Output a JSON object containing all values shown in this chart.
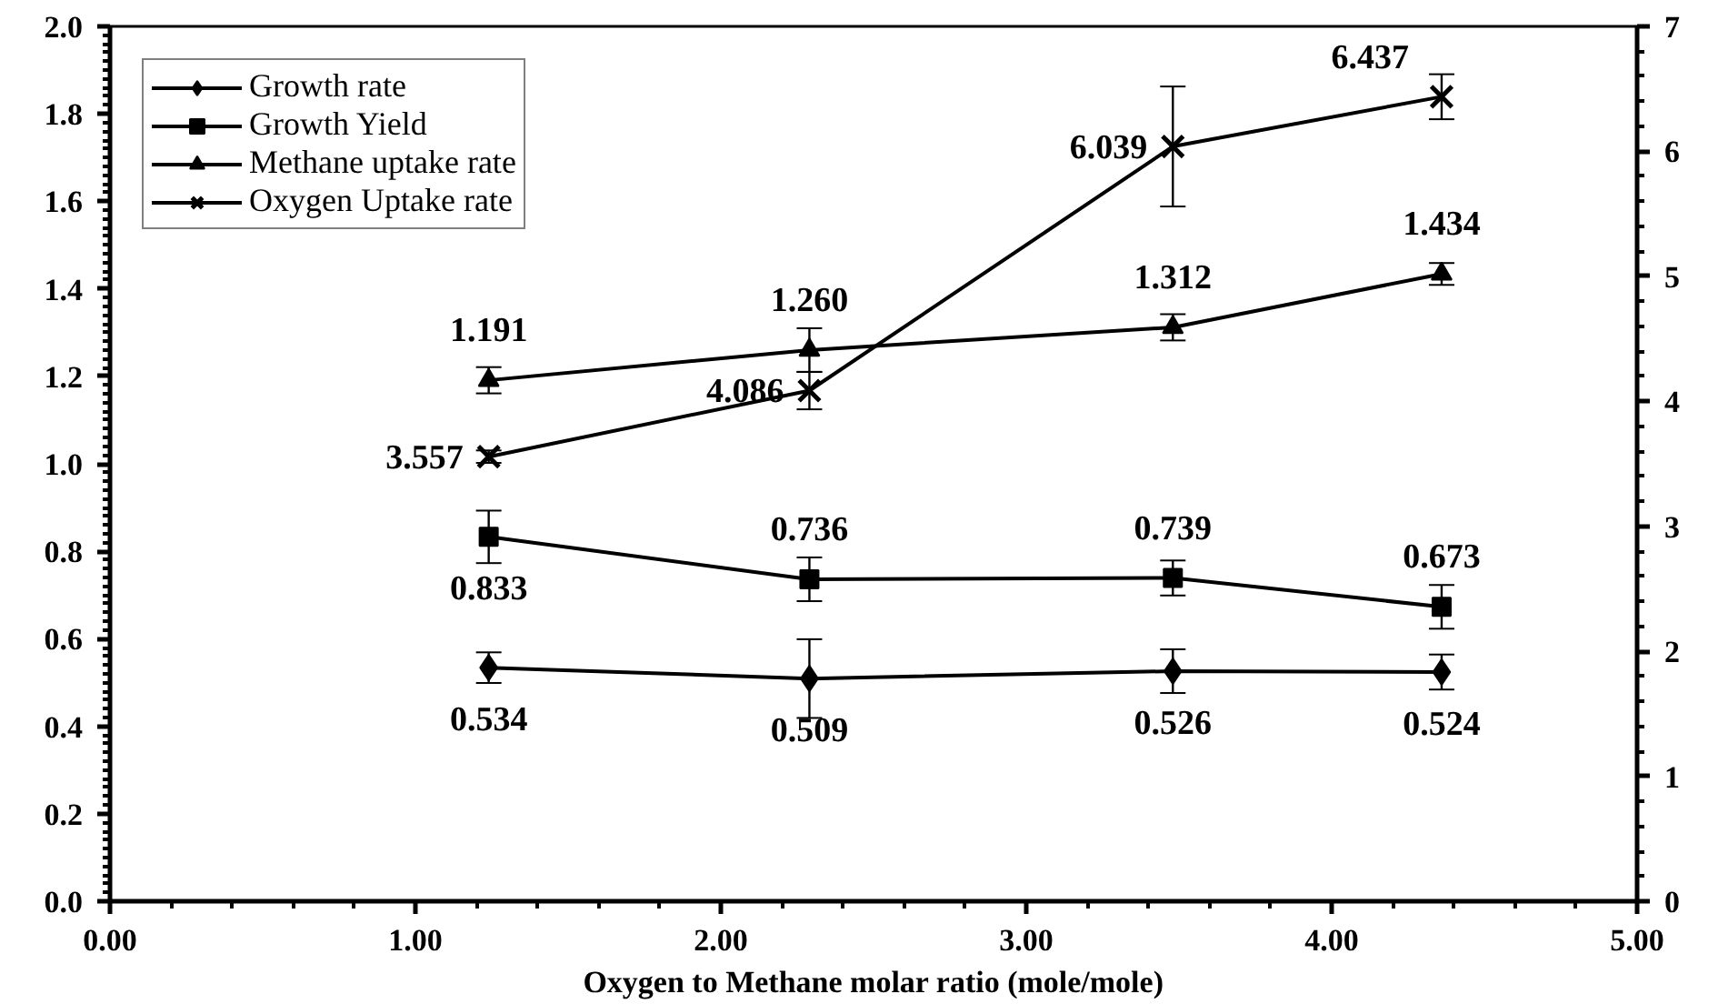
{
  "chart_data": {
    "type": "line",
    "xlabel": "Oxygen to Methane molar ratio (mole/mole)",
    "x": [
      1.24,
      2.29,
      3.48,
      4.36
    ],
    "xlim": [
      0,
      5
    ],
    "xticks": [
      {
        "value": 0,
        "label": "0.00"
      },
      {
        "value": 1,
        "label": "1.00"
      },
      {
        "value": 2,
        "label": "2.00"
      },
      {
        "value": 3,
        "label": "3.00"
      },
      {
        "value": 4,
        "label": "4.00"
      },
      {
        "value": 5,
        "label": "5.00"
      }
    ],
    "ylim": [
      0,
      2
    ],
    "yticks": [
      {
        "value": 0,
        "label": "0.0"
      },
      {
        "value": 0.2,
        "label": "0.2"
      },
      {
        "value": 0.4,
        "label": "0.4"
      },
      {
        "value": 0.6,
        "label": "0.6"
      },
      {
        "value": 0.8,
        "label": "0.8"
      },
      {
        "value": 1.0,
        "label": "1.0"
      },
      {
        "value": 1.2,
        "label": "1.2"
      },
      {
        "value": 1.4,
        "label": "1.4"
      },
      {
        "value": 1.6,
        "label": "1.6"
      },
      {
        "value": 1.8,
        "label": "1.8"
      },
      {
        "value": 2.0,
        "label": "2.0"
      }
    ],
    "y2lim": [
      0,
      7
    ],
    "y2ticks": [
      0,
      1,
      2,
      3,
      4,
      5,
      6,
      7
    ],
    "grid": false,
    "legend": "top left",
    "line_style": "solid",
    "series": [
      {
        "name": "Growth rate",
        "color": "#000000",
        "marker": "diamond",
        "values": [
          0.534,
          0.509,
          0.526,
          0.524
        ],
        "value_labels": [
          "0.534",
          "0.509",
          "0.526",
          "0.524"
        ],
        "errors": [
          0.035,
          0.09,
          0.05,
          0.04
        ]
      },
      {
        "name": "Growth Yield",
        "color": "#000000",
        "marker": "square",
        "values": [
          0.833,
          0.736,
          0.739,
          0.673
        ],
        "value_labels": [
          "0.833",
          "0.736",
          "0.739",
          "0.673"
        ],
        "errors": [
          0.06,
          0.05,
          0.04,
          0.05
        ]
      },
      {
        "name": "Methane uptake rate",
        "color": "#000000",
        "marker": "triangle",
        "values": [
          1.191,
          1.26,
          1.312,
          1.434
        ],
        "value_labels": [
          "1.191",
          "1.260",
          "1.312",
          "1.434"
        ],
        "errors": [
          0.03,
          0.05,
          0.03,
          0.025
        ]
      },
      {
        "name": "Oxygen Uptake rate",
        "color": "#000000",
        "marker": "cross",
        "axis": "y2",
        "values": [
          3.557,
          4.086,
          6.039,
          6.437
        ],
        "value_labels": [
          "3.557",
          "4.086",
          "6.039",
          "6.437"
        ],
        "errors": [
          0.05,
          0.15,
          0.48,
          0.18
        ]
      }
    ]
  }
}
